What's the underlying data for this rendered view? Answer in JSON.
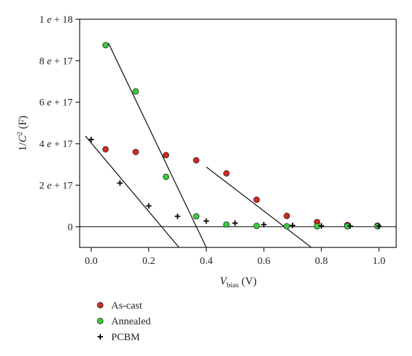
{
  "chart_data": {
    "type": "scatter",
    "title": "",
    "xlabel": {
      "base": "V",
      "sub": "bias",
      "unit": " (V)"
    },
    "ylabel": {
      "prefix": "1/",
      "base": "C",
      "sup": "2",
      "unit": " (F)"
    },
    "xlim": [
      -0.04,
      1.06
    ],
    "ylim": [
      -1e+17,
      1e+18
    ],
    "x_ticks": [
      0.0,
      0.2,
      0.4,
      0.6,
      0.8,
      1.0
    ],
    "x_tick_labels": [
      "0.0",
      "0.2",
      "0.4",
      "0.6",
      "0.8",
      "1.0"
    ],
    "y_ticks": [
      0,
      2e+17,
      4e+17,
      6e+17,
      8e+17,
      1e+18
    ],
    "y_tick_labels": [
      {
        "mant": "0",
        "exp": ""
      },
      {
        "mant": "2",
        "exp": "17"
      },
      {
        "mant": "4",
        "exp": "17"
      },
      {
        "mant": "6",
        "exp": "17"
      },
      {
        "mant": "8",
        "exp": "17"
      },
      {
        "mant": "1",
        "exp": "18"
      }
    ],
    "legend_position": "below-left",
    "zero_line": true,
    "grid": false,
    "series": [
      {
        "name": "As-cast",
        "marker": "circle",
        "color": "#d42a1e",
        "x": [
          0.05,
          0.155,
          0.26,
          0.365,
          0.47,
          0.575,
          0.68,
          0.785,
          0.89,
          0.995
        ],
        "y": [
          3.73e+17,
          3.6e+17,
          3.45e+17,
          3.2e+17,
          2.57e+17,
          1.3e+17,
          5.2e+16,
          2.2e+16,
          8000000000000000.0,
          5000000000000000.0
        ],
        "fit_line": {
          "x": [
            0.4,
            0.765
          ],
          "y": [
            2.88e+17,
            -1e+17
          ]
        }
      },
      {
        "name": "Annealed",
        "marker": "circle",
        "color": "#3ccb3c",
        "x": [
          0.05,
          0.155,
          0.26,
          0.365,
          0.47,
          0.575,
          0.68,
          0.785,
          0.89,
          0.995
        ],
        "y": [
          8.75e+17,
          6.52e+17,
          2.4e+17,
          5e+16,
          1e+16,
          4000000000000000.0,
          2000000000000000.0,
          2000000000000000.0,
          2000000000000000.0,
          2000000000000000.0
        ],
        "fit_line": {
          "x": [
            0.06,
            0.4
          ],
          "y": [
            8.85e+17,
            -1e+17
          ]
        }
      },
      {
        "name": "PCBM",
        "marker": "plus",
        "color": "#111111",
        "x": [
          0.0,
          0.1,
          0.2,
          0.3,
          0.4,
          0.5,
          0.6,
          0.7,
          0.8,
          0.9,
          1.0
        ],
        "y": [
          4.2e+17,
          2.1e+17,
          1e+17,
          5e+16,
          2.7e+16,
          1.7e+16,
          1e+16,
          6000000000000000.0,
          4000000000000000.0,
          3000000000000000.0,
          2000000000000000.0
        ],
        "fit_line": {
          "x": [
            -0.02,
            0.305
          ],
          "y": [
            4.37e+17,
            -1e+17
          ]
        }
      }
    ]
  }
}
